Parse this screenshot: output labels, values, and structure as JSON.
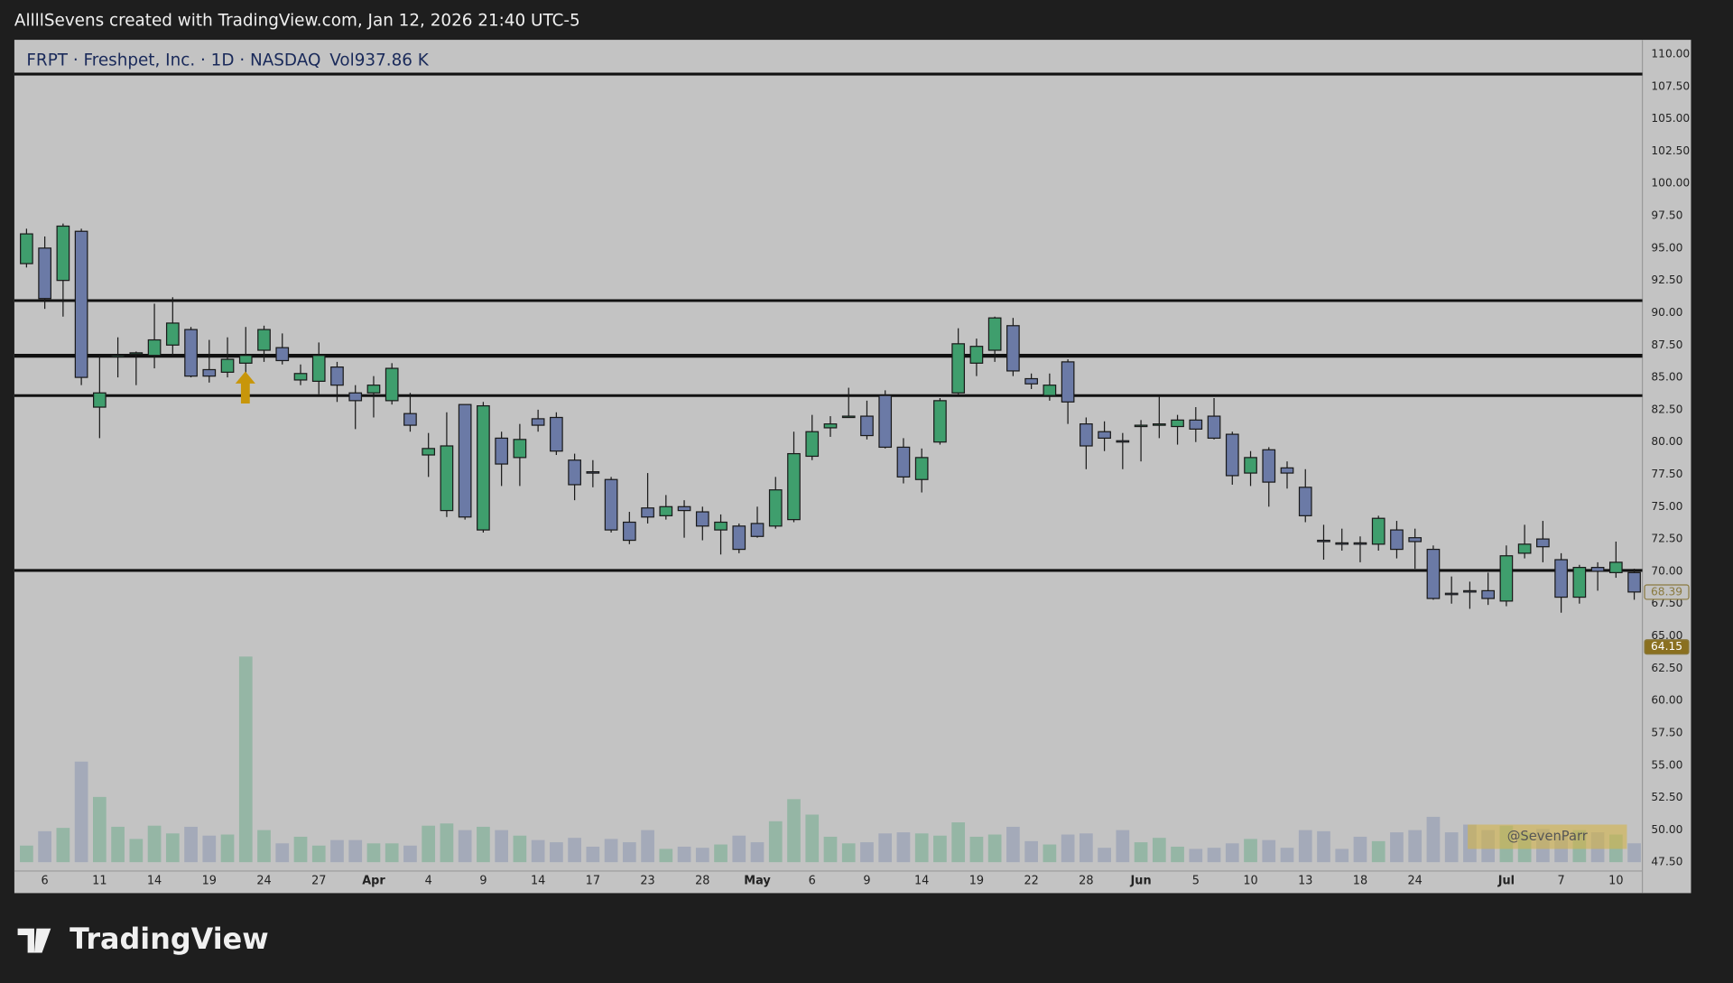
{
  "top_bar": {
    "text": "AllllSevens created with TradingView.com, Jan 12, 2026 21:40 UTC-5"
  },
  "footer": {
    "brand": "TradingView"
  },
  "chart_data": {
    "type": "candlestick",
    "title": "FRPT · Freshpet, Inc. · 1D · NASDAQ",
    "watermark": "@SevenParr",
    "categories": [
      null,
      "6",
      null,
      null,
      "11",
      null,
      null,
      "14",
      null,
      null,
      "19",
      null,
      null,
      "24",
      null,
      null,
      "27",
      null,
      null,
      "Apr",
      null,
      null,
      "4",
      null,
      null,
      "9",
      null,
      null,
      "14",
      null,
      null,
      "17",
      null,
      null,
      "23",
      null,
      null,
      "28",
      null,
      null,
      "May",
      null,
      null,
      "6",
      null,
      null,
      "9",
      null,
      null,
      "14",
      null,
      null,
      "19",
      null,
      null,
      "22",
      null,
      null,
      "28",
      null,
      null,
      "Jun",
      null,
      null,
      "5",
      null,
      null,
      "10",
      null,
      null,
      "13",
      null,
      null,
      "18",
      null,
      null,
      "24",
      null,
      null,
      null,
      null,
      "Jul",
      null,
      null,
      "7",
      null,
      null,
      "10",
      null
    ],
    "open": [
      93.8,
      95.0,
      92.5,
      96.3,
      82.7,
      86.6,
      86.8,
      86.7,
      87.5,
      88.7,
      85.6,
      85.4,
      86.1,
      87.1,
      87.3,
      84.8,
      84.7,
      85.8,
      83.8,
      83.8,
      83.2,
      82.2,
      79.0,
      74.7,
      82.9,
      73.2,
      80.3,
      78.8,
      81.8,
      81.9,
      78.6,
      77.7,
      77.1,
      73.8,
      74.9,
      74.3,
      75.0,
      74.6,
      73.2,
      73.5,
      73.7,
      73.5,
      74.0,
      78.9,
      81.1,
      81.9,
      82.0,
      83.6,
      79.6,
      77.1,
      80.0,
      83.8,
      86.1,
      87.1,
      89.0,
      84.9,
      83.6,
      86.2,
      81.4,
      80.8,
      80.1,
      81.2,
      81.3,
      81.2,
      81.7,
      82.0,
      80.6,
      77.6,
      79.4,
      78.0,
      76.5,
      72.4,
      72.2,
      72.2,
      72.1,
      73.2,
      72.6,
      71.7,
      68.3,
      68.5,
      68.5,
      67.7,
      71.4,
      72.5,
      70.9,
      68.0,
      70.3,
      69.9,
      69.9
    ],
    "high": [
      96.5,
      95.9,
      96.9,
      96.5,
      86.7,
      88.1,
      87.0,
      90.7,
      91.2,
      88.9,
      87.9,
      88.1,
      88.9,
      89.0,
      88.4,
      86.0,
      87.7,
      86.2,
      84.4,
      85.1,
      86.1,
      83.8,
      80.7,
      82.3,
      82.9,
      83.1,
      80.8,
      81.4,
      82.5,
      82.3,
      79.1,
      78.6,
      77.3,
      74.6,
      77.6,
      75.9,
      75.5,
      75.0,
      74.4,
      73.7,
      75.0,
      77.3,
      80.8,
      82.1,
      82.0,
      84.2,
      83.2,
      84.0,
      80.3,
      79.5,
      83.4,
      88.8,
      88.0,
      89.7,
      89.6,
      85.3,
      85.3,
      86.4,
      81.9,
      81.6,
      80.7,
      81.7,
      83.5,
      82.1,
      82.7,
      83.4,
      80.8,
      79.3,
      79.6,
      78.5,
      77.9,
      73.6,
      73.3,
      72.7,
      74.3,
      73.9,
      73.3,
      72.0,
      69.6,
      69.2,
      69.9,
      72.0,
      73.6,
      73.9,
      71.4,
      70.5,
      70.7,
      72.3,
      70.2
    ],
    "low": [
      93.5,
      90.3,
      89.7,
      84.4,
      80.3,
      85.0,
      84.4,
      85.7,
      86.7,
      85.0,
      84.6,
      85.0,
      85.1,
      86.2,
      86.0,
      84.4,
      83.7,
      83.1,
      81.0,
      81.9,
      82.9,
      80.8,
      77.3,
      74.2,
      74.0,
      73.0,
      76.6,
      76.6,
      80.8,
      79.0,
      75.5,
      76.5,
      73.0,
      72.1,
      73.7,
      74.0,
      72.6,
      72.4,
      71.3,
      71.4,
      72.6,
      73.3,
      73.8,
      78.6,
      80.4,
      81.9,
      80.2,
      79.5,
      76.8,
      76.1,
      79.8,
      83.7,
      85.1,
      86.2,
      85.1,
      84.1,
      83.2,
      81.4,
      77.9,
      79.3,
      77.9,
      78.5,
      80.3,
      79.8,
      80.0,
      80.2,
      76.7,
      76.6,
      75.0,
      76.4,
      73.8,
      70.9,
      71.6,
      70.7,
      71.6,
      71.0,
      70.2,
      67.8,
      67.5,
      67.1,
      67.4,
      67.3,
      71.0,
      70.7,
      66.8,
      67.5,
      68.5,
      69.5,
      67.8
    ],
    "close": [
      96.1,
      91.1,
      96.7,
      85.0,
      83.8,
      86.7,
      86.9,
      87.9,
      89.2,
      85.1,
      85.1,
      86.4,
      86.7,
      88.7,
      86.3,
      85.3,
      86.7,
      84.4,
      83.2,
      84.4,
      85.7,
      81.3,
      79.5,
      79.7,
      74.2,
      82.8,
      78.3,
      80.2,
      81.3,
      79.3,
      76.7,
      77.6,
      73.2,
      72.4,
      74.2,
      75.0,
      74.7,
      73.5,
      73.8,
      71.7,
      72.7,
      76.3,
      79.1,
      80.8,
      81.4,
      82.0,
      80.5,
      79.6,
      77.3,
      78.8,
      83.2,
      87.6,
      87.4,
      89.6,
      85.5,
      84.5,
      84.4,
      83.1,
      79.7,
      80.3,
      80.0,
      81.3,
      81.4,
      81.7,
      81.0,
      80.3,
      77.4,
      78.8,
      76.9,
      77.6,
      74.3,
      72.3,
      72.1,
      72.1,
      74.1,
      71.7,
      72.3,
      67.9,
      68.2,
      68.4,
      67.9,
      71.2,
      72.1,
      71.9,
      68.0,
      70.3,
      70.0,
      70.7,
      68.4
    ],
    "volume": {
      "name": "Vol",
      "last_label": "937.86 K",
      "values": [
        825,
        1540,
        1705,
        5005,
        3245,
        1760,
        1155,
        1815,
        1430,
        1760,
        1320,
        1375,
        10230,
        1595,
        935,
        1265,
        825,
        1100,
        1100,
        935,
        935,
        825,
        1815,
        1925,
        1595,
        1760,
        1595,
        1320,
        1100,
        990,
        1210,
        770,
        1155,
        990,
        1595,
        660,
        770,
        715,
        880,
        1320,
        990,
        2035,
        3135,
        2365,
        1265,
        935,
        990,
        1430,
        1485,
        1430,
        1320,
        1980,
        1265,
        1375,
        1760,
        1045,
        880,
        1375,
        1430,
        715,
        1595,
        990,
        1210,
        770,
        660,
        715,
        935,
        1155,
        1100,
        715,
        1595,
        1540,
        660,
        1265,
        1045,
        1485,
        1595,
        2255,
        1485,
        1870,
        1595,
        1815,
        1485,
        1650,
        1320,
        1595,
        1485,
        1375,
        937.86
      ]
    },
    "up_color": "#3f9e6d",
    "down_color": "#6b7aa6",
    "hlines": [
      108.46,
      90.94,
      86.67,
      83.59,
      70.07
    ],
    "price_tags": [
      68.39,
      64.15
    ],
    "ylim": [
      46.82,
      111.11
    ],
    "yticks": [
      {
        "value": 110,
        "label": "110.00"
      },
      {
        "value": 107.5,
        "label": "107.50"
      },
      {
        "value": 105,
        "label": "105.00"
      },
      {
        "value": 102.5,
        "label": "102.50"
      },
      {
        "value": 100,
        "label": "100.00"
      },
      {
        "value": 97.5,
        "label": "97.50"
      },
      {
        "value": 95,
        "label": "95.00"
      },
      {
        "value": 92.5,
        "label": "92.50"
      },
      {
        "value": 90,
        "label": "90.00"
      },
      {
        "value": 87.5,
        "label": "87.50"
      },
      {
        "value": 85,
        "label": "85.00"
      },
      {
        "value": 82.5,
        "label": "82.50"
      },
      {
        "value": 80,
        "label": "80.00"
      },
      {
        "value": 77.5,
        "label": "77.50"
      },
      {
        "value": 75,
        "label": "75.00"
      },
      {
        "value": 72.5,
        "label": "72.50"
      },
      {
        "value": 70,
        "label": "70.00"
      },
      {
        "value": 67.5,
        "label": "67.50"
      },
      {
        "value": 65,
        "label": "65.00"
      },
      {
        "value": 62.5,
        "label": "62.50"
      },
      {
        "value": 60,
        "label": "60.00"
      },
      {
        "value": 57.5,
        "label": "57.50"
      },
      {
        "value": 55,
        "label": "55.00"
      },
      {
        "value": 52.5,
        "label": "52.50"
      },
      {
        "value": 50,
        "label": "50.00"
      },
      {
        "value": 47.5,
        "label": "47.50"
      }
    ],
    "grid": false
  }
}
